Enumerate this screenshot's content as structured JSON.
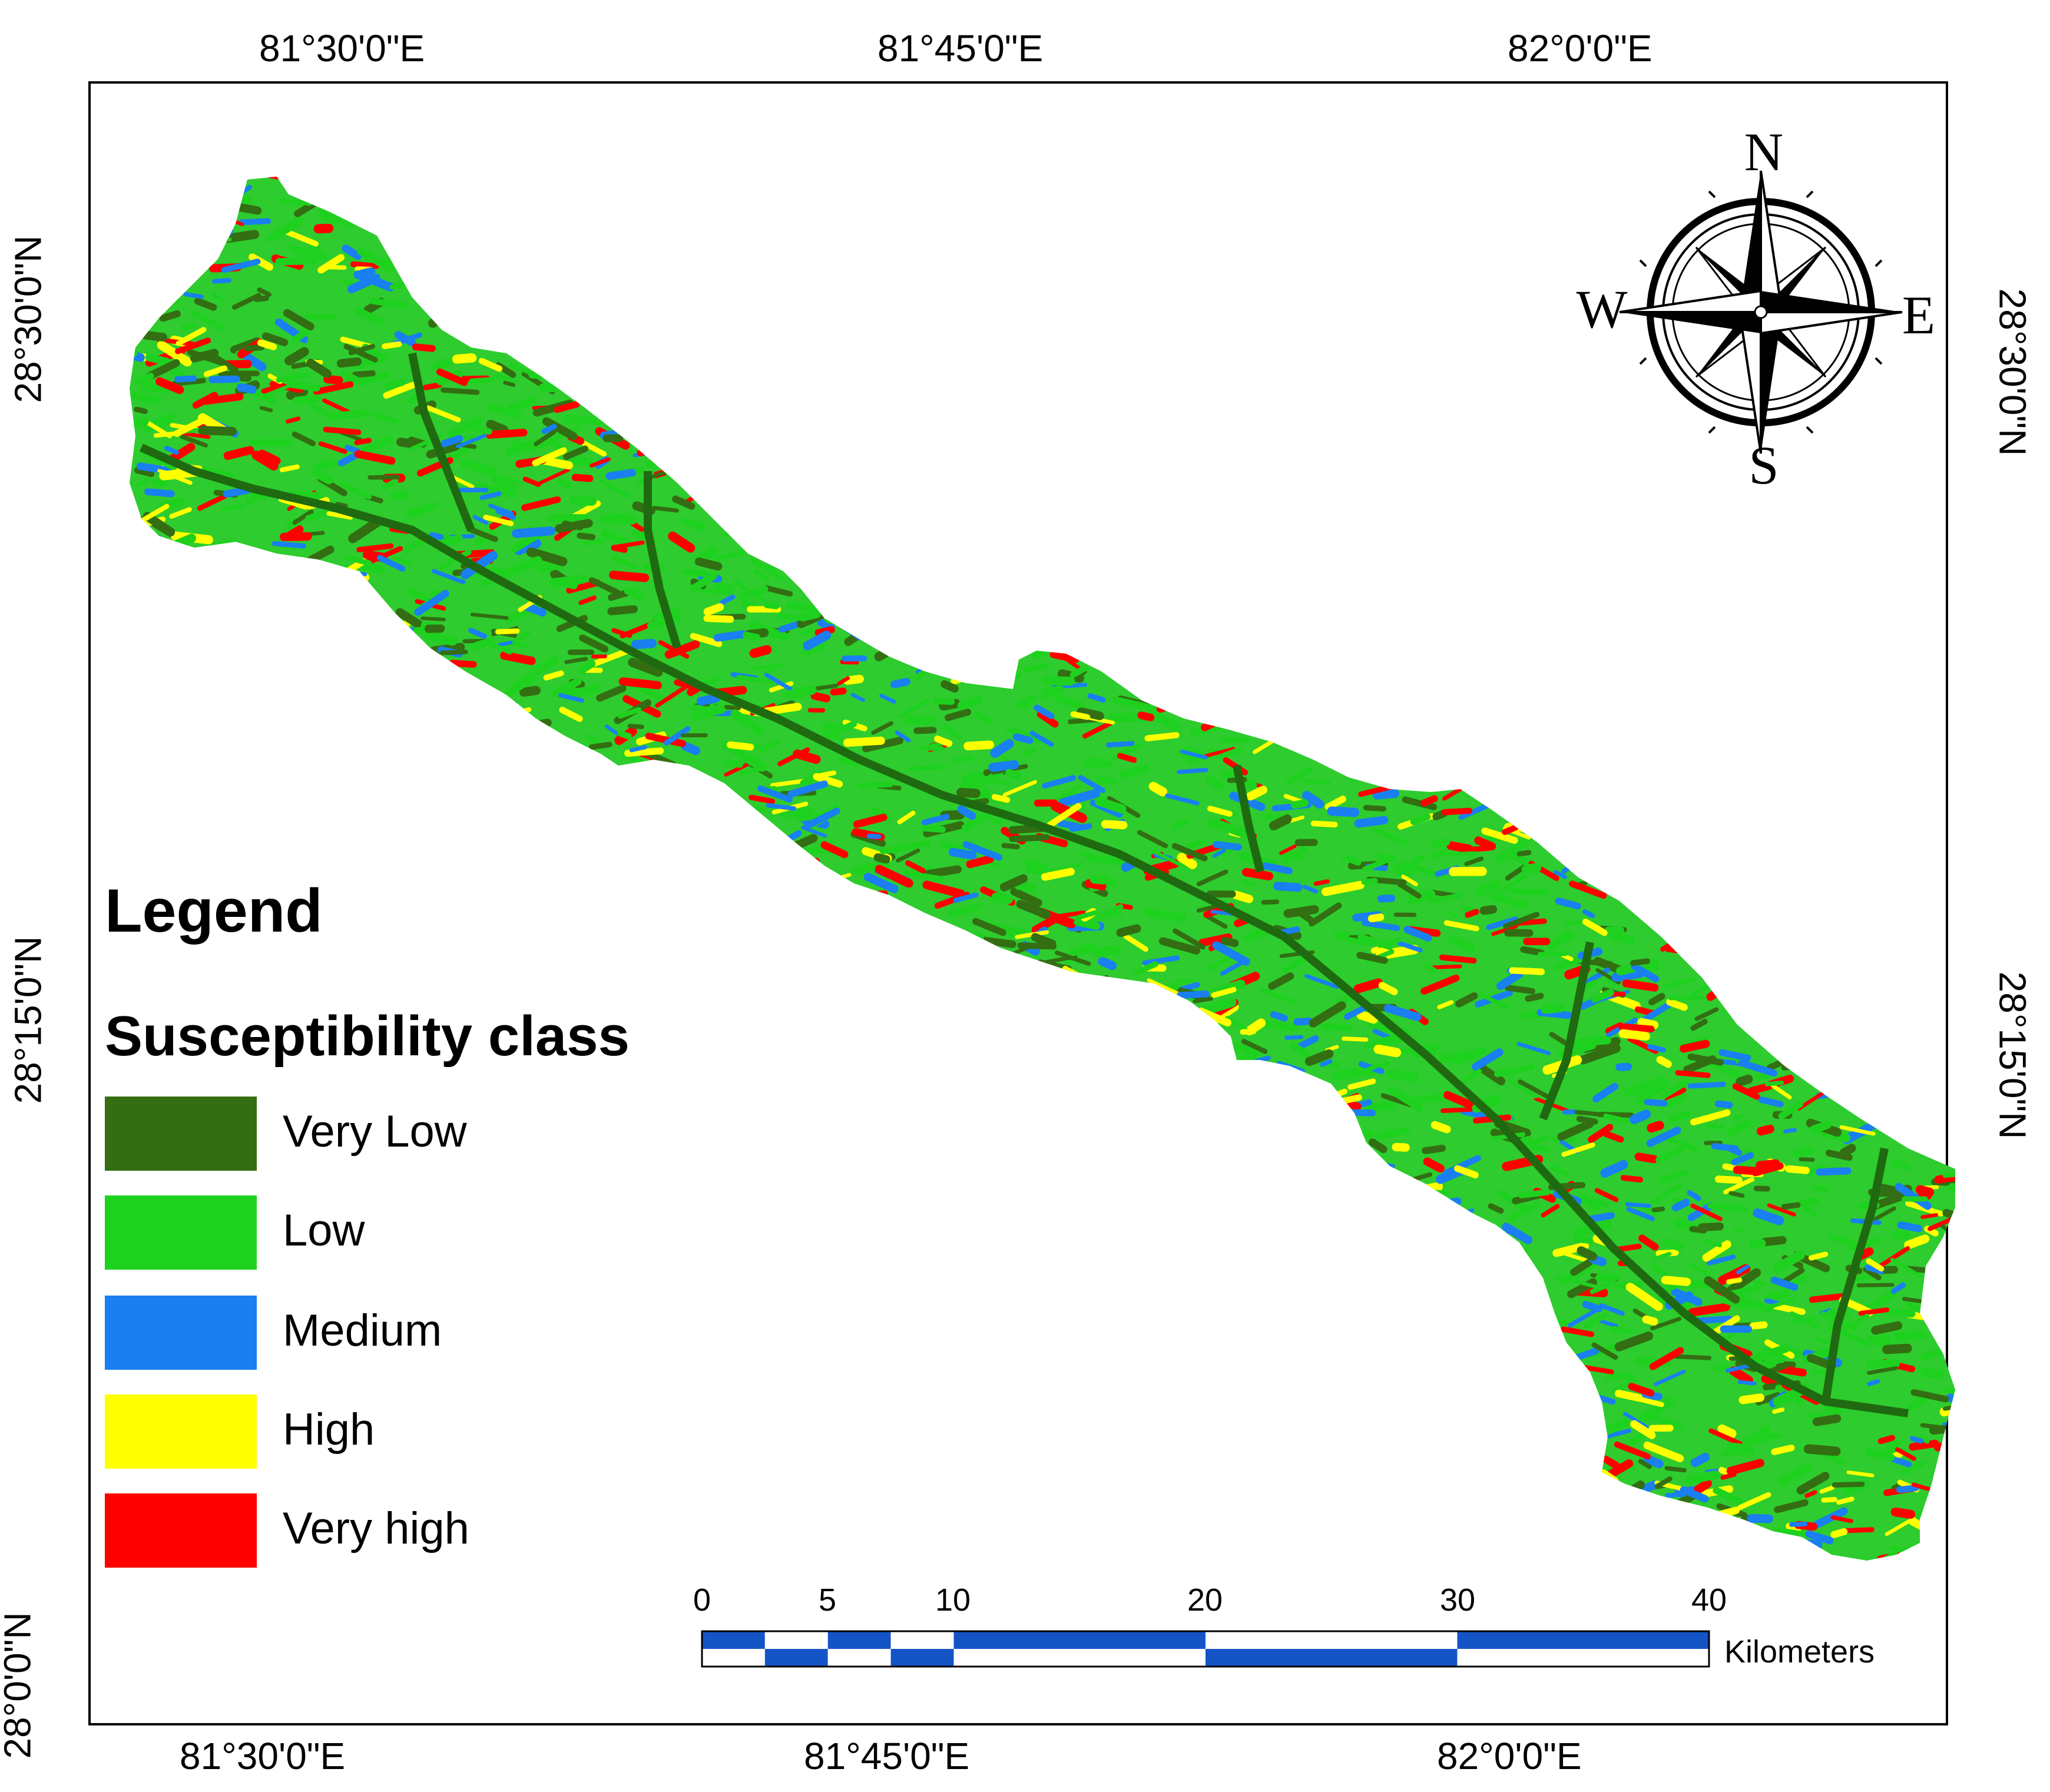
{
  "axes": {
    "top_labels": [
      "81°30'0\"E",
      "81°45'0\"E",
      "82°0'0\"E"
    ],
    "bottom_labels": [
      "81°30'0\"E",
      "81°45'0\"E",
      "82°0'0\"E"
    ],
    "left_labels": [
      "28°30'0\"N",
      "28°15'0\"N",
      "28°0'0\"N"
    ],
    "right_labels": [
      "28°30'0\"N",
      "28°15'0\"N"
    ]
  },
  "legend": {
    "title": "Legend",
    "subtitle": "Susceptibility class",
    "classes": [
      {
        "label": "Very Low",
        "color": "#336e13"
      },
      {
        "label": "Low",
        "color": "#1fd11f"
      },
      {
        "label": "Medium",
        "color": "#1a7ff0"
      },
      {
        "label": "High",
        "color": "#ffff00"
      },
      {
        "label": "Very high",
        "color": "#ff0000"
      }
    ]
  },
  "scale_bar": {
    "ticks": [
      "0",
      "5",
      "10",
      "20",
      "30",
      "40"
    ],
    "unit": "Kilometers",
    "color": "#1554c7"
  },
  "compass": {
    "north": "N",
    "south": "S",
    "east": "E",
    "west": "W"
  }
}
